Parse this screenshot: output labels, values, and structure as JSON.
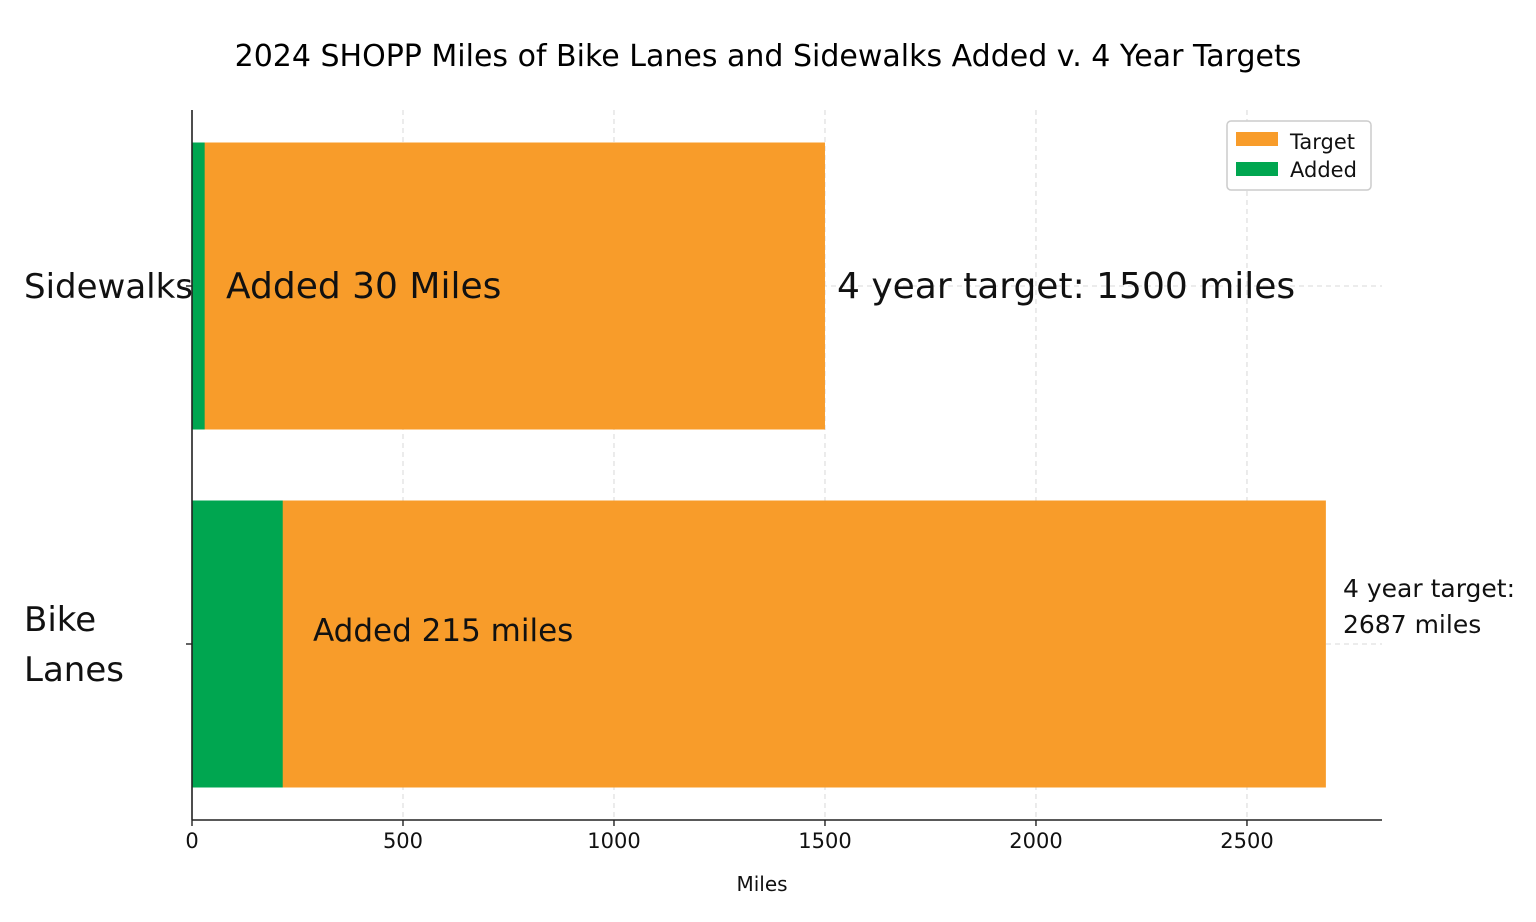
{
  "chart_data": {
    "type": "bar",
    "orientation": "horizontal",
    "stacked": true,
    "title": "2024 SHOPP Miles of Bike Lanes and Sidewalks Added v. 4 Year Targets",
    "xlabel": "Miles",
    "ylabel": "",
    "xlim": [
      0,
      2820
    ],
    "xticks": [
      0,
      500,
      1000,
      1500,
      2000,
      2500
    ],
    "grid": true,
    "legend_position": "top-right",
    "categories": [
      {
        "label": "Sidewalks",
        "lines": [
          "Sidewalks"
        ]
      },
      {
        "label": "Bike Lanes",
        "lines": [
          "Bike",
          "Lanes"
        ]
      }
    ],
    "series": [
      {
        "name": "Target",
        "color": "#f89c2a",
        "values": [
          1500,
          2687
        ]
      },
      {
        "name": "Added",
        "color": "#00a650",
        "values": [
          30,
          215
        ]
      }
    ],
    "annotations": [
      {
        "category": "Sidewalks",
        "lines": [
          "Added 30 Miles"
        ]
      },
      {
        "category": "Sidewalks",
        "lines": [
          "4 year target: 1500 miles"
        ]
      },
      {
        "category": "Bike Lanes",
        "lines": [
          "Added 215 miles"
        ]
      },
      {
        "category": "Bike Lanes",
        "lines": [
          "4 year target:",
          "2687 miles"
        ]
      }
    ]
  }
}
